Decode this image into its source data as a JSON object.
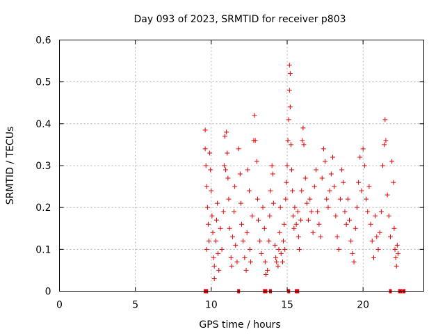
{
  "chart_data": {
    "type": "scatter",
    "title": "Day 093 of 2023, SRMTID for receiver p803",
    "xlabel": "GPS time / hours",
    "ylabel": "SRMTID / TECUs",
    "xlim": [
      0,
      24
    ],
    "ylim": [
      0,
      0.6
    ],
    "x_ticks": [
      0,
      5,
      10,
      15,
      20
    ],
    "x_tick_labels": [
      "0",
      "5",
      "10",
      "15",
      "20"
    ],
    "y_ticks": [
      0,
      0.1,
      0.2,
      0.3,
      0.4,
      0.5,
      0.6
    ],
    "y_tick_labels": [
      "0",
      "0.1",
      "0.2",
      "0.3",
      "0.4",
      "0.5",
      "0.6"
    ],
    "grid": true,
    "marker": "+",
    "color": "#e00000",
    "data_range_hours": [
      9.5,
      22.8
    ],
    "series": [
      {
        "name": "SRMTID",
        "points": [
          [
            9.6,
            0.385
          ],
          [
            9.6,
            0.34
          ],
          [
            9.65,
            0.3
          ],
          [
            9.7,
            0.25
          ],
          [
            9.75,
            0.2
          ],
          [
            9.8,
            0.16
          ],
          [
            9.85,
            0.12
          ],
          [
            9.7,
            0.1
          ],
          [
            9.9,
            0.33
          ],
          [
            9.95,
            0.29
          ],
          [
            10.0,
            0.24
          ],
          [
            10.05,
            0.18
          ],
          [
            10.1,
            0.14
          ],
          [
            10.15,
            0.08
          ],
          [
            10.2,
            0.06
          ],
          [
            10.2,
            0.03
          ],
          [
            10.3,
            0.12
          ],
          [
            10.35,
            0.17
          ],
          [
            10.4,
            0.21
          ],
          [
            10.45,
            0.09
          ],
          [
            10.5,
            0.05
          ],
          [
            10.6,
            0.15
          ],
          [
            10.7,
            0.1
          ],
          [
            10.8,
            0.19
          ],
          [
            10.85,
            0.3
          ],
          [
            10.9,
            0.37
          ],
          [
            10.95,
            0.29
          ],
          [
            11.0,
            0.38
          ],
          [
            11.05,
            0.33
          ],
          [
            11.1,
            0.27
          ],
          [
            11.15,
            0.22
          ],
          [
            11.2,
            0.15
          ],
          [
            11.3,
            0.08
          ],
          [
            11.35,
            0.06
          ],
          [
            11.4,
            0.13
          ],
          [
            11.5,
            0.19
          ],
          [
            11.55,
            0.25
          ],
          [
            11.6,
            0.11
          ],
          [
            11.7,
            0.07
          ],
          [
            11.8,
            0.34
          ],
          [
            11.9,
            0.28
          ],
          [
            11.95,
            0.21
          ],
          [
            12.0,
            0.16
          ],
          [
            12.1,
            0.12
          ],
          [
            12.2,
            0.08
          ],
          [
            12.3,
            0.05
          ],
          [
            12.35,
            0.14
          ],
          [
            12.4,
            0.29
          ],
          [
            12.5,
            0.24
          ],
          [
            12.55,
            0.1
          ],
          [
            12.6,
            0.07
          ],
          [
            12.7,
            0.18
          ],
          [
            12.8,
            0.36
          ],
          [
            12.85,
            0.42
          ],
          [
            12.9,
            0.36
          ],
          [
            13.0,
            0.31
          ],
          [
            13.05,
            0.22
          ],
          [
            13.1,
            0.17
          ],
          [
            13.2,
            0.12
          ],
          [
            13.3,
            0.09
          ],
          [
            13.4,
            0.2
          ],
          [
            13.5,
            0.15
          ],
          [
            13.55,
            0.07
          ],
          [
            13.6,
            0.04
          ],
          [
            13.7,
            0.05
          ],
          [
            13.8,
            0.12
          ],
          [
            13.85,
            0.18
          ],
          [
            13.9,
            0.24
          ],
          [
            14.0,
            0.3
          ],
          [
            14.05,
            0.28
          ],
          [
            14.1,
            0.21
          ],
          [
            14.2,
            0.11
          ],
          [
            14.25,
            0.08
          ],
          [
            14.3,
            0.07
          ],
          [
            14.4,
            0.06
          ],
          [
            14.45,
            0.1
          ],
          [
            14.5,
            0.14
          ],
          [
            14.55,
            0.2
          ],
          [
            14.6,
            0.09
          ],
          [
            14.7,
            0.07
          ],
          [
            14.75,
            0.12
          ],
          [
            14.8,
            0.16
          ],
          [
            14.85,
            0.1
          ],
          [
            14.9,
            0.22
          ],
          [
            14.95,
            0.26
          ],
          [
            15.0,
            0.3
          ],
          [
            15.05,
            0.36
          ],
          [
            15.1,
            0.41
          ],
          [
            15.15,
            0.48
          ],
          [
            15.15,
            0.54
          ],
          [
            15.2,
            0.52
          ],
          [
            15.2,
            0.44
          ],
          [
            15.25,
            0.35
          ],
          [
            15.3,
            0.29
          ],
          [
            15.35,
            0.24
          ],
          [
            15.4,
            0.18
          ],
          [
            15.45,
            0.15
          ],
          [
            15.5,
            0.2
          ],
          [
            15.6,
            0.16
          ],
          [
            15.7,
            0.19
          ],
          [
            15.75,
            0.13
          ],
          [
            15.8,
            0.1
          ],
          [
            15.9,
            0.17
          ],
          [
            15.95,
            0.24
          ],
          [
            16.0,
            0.36
          ],
          [
            16.05,
            0.39
          ],
          [
            16.1,
            0.35
          ],
          [
            16.2,
            0.27
          ],
          [
            16.3,
            0.21
          ],
          [
            16.4,
            0.17
          ],
          [
            16.5,
            0.22
          ],
          [
            16.6,
            0.19
          ],
          [
            16.7,
            0.14
          ],
          [
            16.8,
            0.25
          ],
          [
            16.9,
            0.29
          ],
          [
            17.0,
            0.19
          ],
          [
            17.1,
            0.16
          ],
          [
            17.2,
            0.13
          ],
          [
            17.3,
            0.27
          ],
          [
            17.4,
            0.34
          ],
          [
            17.5,
            0.31
          ],
          [
            17.6,
            0.22
          ],
          [
            17.7,
            0.2
          ],
          [
            17.8,
            0.24
          ],
          [
            17.9,
            0.28
          ],
          [
            18.0,
            0.32
          ],
          [
            18.1,
            0.25
          ],
          [
            18.2,
            0.18
          ],
          [
            18.3,
            0.13
          ],
          [
            18.4,
            0.1
          ],
          [
            18.5,
            0.22
          ],
          [
            18.6,
            0.29
          ],
          [
            18.7,
            0.26
          ],
          [
            18.8,
            0.19
          ],
          [
            18.9,
            0.16
          ],
          [
            19.0,
            0.22
          ],
          [
            19.1,
            0.17
          ],
          [
            19.2,
            0.12
          ],
          [
            19.3,
            0.09
          ],
          [
            19.4,
            0.07
          ],
          [
            19.5,
            0.15
          ],
          [
            19.6,
            0.2
          ],
          [
            19.7,
            0.26
          ],
          [
            19.8,
            0.32
          ],
          [
            19.9,
            0.24
          ],
          [
            20.0,
            0.34
          ],
          [
            20.1,
            0.3
          ],
          [
            20.2,
            0.22
          ],
          [
            20.3,
            0.19
          ],
          [
            20.4,
            0.25
          ],
          [
            20.5,
            0.16
          ],
          [
            20.6,
            0.12
          ],
          [
            20.7,
            0.08
          ],
          [
            20.8,
            0.18
          ],
          [
            20.9,
            0.13
          ],
          [
            21.0,
            0.1
          ],
          [
            21.1,
            0.14
          ],
          [
            21.2,
            0.19
          ],
          [
            21.3,
            0.3
          ],
          [
            21.4,
            0.35
          ],
          [
            21.45,
            0.41
          ],
          [
            21.5,
            0.36
          ],
          [
            21.6,
            0.23
          ],
          [
            21.7,
            0.18
          ],
          [
            21.8,
            0.13
          ],
          [
            21.9,
            0.31
          ],
          [
            22.0,
            0.26
          ],
          [
            22.05,
            0.15
          ],
          [
            22.1,
            0.1
          ],
          [
            22.15,
            0.08
          ],
          [
            22.2,
            0.06
          ],
          [
            22.25,
            0.11
          ],
          [
            22.3,
            0.09
          ]
        ],
        "zero_points": [
          9.6,
          9.7,
          11.8,
          13.5,
          13.6,
          13.9,
          15.1,
          15.6,
          15.7,
          21.8,
          22.4,
          22.5,
          22.7
        ]
      }
    ]
  }
}
